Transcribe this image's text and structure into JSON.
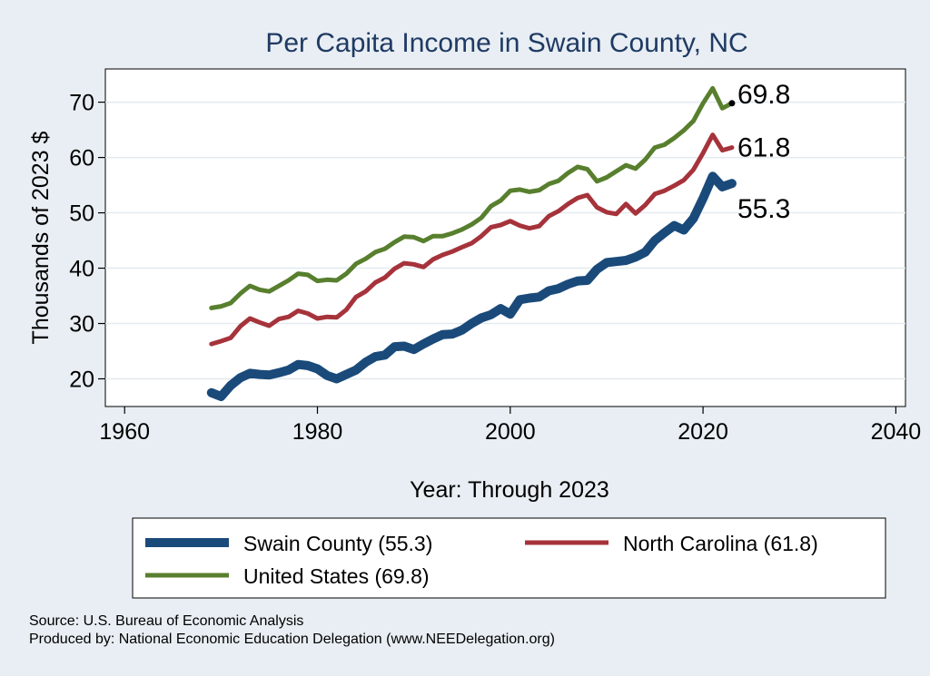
{
  "chart_data": {
    "type": "line",
    "title": "Per Capita Income in Swain County, NC",
    "xlabel": "Year: Through 2023",
    "ylabel": "Thousands of 2023 $",
    "xlim": [
      1958,
      2041
    ],
    "ylim": [
      15,
      76
    ],
    "xticks": [
      1960,
      1980,
      2000,
      2020,
      2040
    ],
    "yticks": [
      20,
      30,
      40,
      50,
      60,
      70
    ],
    "x": [
      1969,
      1970,
      1971,
      1972,
      1973,
      1974,
      1975,
      1976,
      1977,
      1978,
      1979,
      1980,
      1981,
      1982,
      1983,
      1984,
      1985,
      1986,
      1987,
      1988,
      1989,
      1990,
      1991,
      1992,
      1993,
      1994,
      1995,
      1996,
      1997,
      1998,
      1999,
      2000,
      2001,
      2002,
      2003,
      2004,
      2005,
      2006,
      2007,
      2008,
      2009,
      2010,
      2011,
      2012,
      2013,
      2014,
      2015,
      2016,
      2017,
      2018,
      2019,
      2020,
      2021,
      2022,
      2023
    ],
    "series": [
      {
        "name": "Swain County",
        "legend": "Swain County (55.3)",
        "end_label": "55.3",
        "color": "#1a4a7a",
        "values": [
          17.5,
          16.8,
          18.8,
          20.2,
          21.0,
          20.8,
          20.7,
          21.1,
          21.6,
          22.6,
          22.4,
          21.8,
          20.6,
          20.0,
          20.8,
          21.6,
          23.0,
          24.0,
          24.3,
          25.8,
          25.9,
          25.3,
          26.3,
          27.2,
          28.0,
          28.1,
          28.8,
          30.0,
          31.0,
          31.6,
          32.7,
          31.7,
          34.3,
          34.6,
          34.8,
          35.9,
          36.3,
          37.1,
          37.7,
          37.8,
          39.8,
          41.0,
          41.2,
          41.4,
          42.0,
          42.9,
          45.0,
          46.4,
          47.7,
          46.9,
          49.0,
          52.6,
          56.6,
          54.7,
          55.3
        ]
      },
      {
        "name": "North Carolina",
        "legend": "North Carolina (61.8)",
        "end_label": "61.8",
        "color": "#a6333b",
        "values": [
          26.3,
          26.8,
          27.4,
          29.5,
          30.9,
          30.2,
          29.6,
          30.8,
          31.2,
          32.3,
          31.8,
          30.9,
          31.2,
          31.1,
          32.5,
          34.8,
          35.8,
          37.4,
          38.3,
          39.9,
          40.9,
          40.7,
          40.2,
          41.6,
          42.4,
          43.0,
          43.8,
          44.5,
          45.8,
          47.4,
          47.8,
          48.5,
          47.7,
          47.2,
          47.6,
          49.4,
          50.3,
          51.6,
          52.7,
          53.2,
          51.0,
          50.1,
          49.8,
          51.6,
          49.9,
          51.4,
          53.4,
          54.0,
          54.9,
          55.9,
          57.8,
          60.8,
          64.1,
          61.3,
          61.8
        ]
      },
      {
        "name": "United States",
        "legend": "United States (69.8)",
        "end_label": "69.8",
        "color": "#587f2e",
        "values": [
          32.8,
          33.1,
          33.7,
          35.4,
          36.8,
          36.1,
          35.8,
          36.8,
          37.8,
          39.0,
          38.8,
          37.7,
          37.9,
          37.8,
          39.0,
          40.8,
          41.7,
          42.9,
          43.5,
          44.7,
          45.7,
          45.6,
          44.9,
          45.8,
          45.8,
          46.3,
          47.0,
          47.9,
          49.1,
          51.2,
          52.2,
          54.0,
          54.2,
          53.8,
          54.1,
          55.2,
          55.8,
          57.2,
          58.3,
          57.9,
          55.7,
          56.4,
          57.5,
          58.6,
          58.0,
          59.6,
          61.8,
          62.3,
          63.5,
          64.9,
          66.6,
          69.8,
          72.5,
          68.9,
          69.8
        ]
      }
    ],
    "legend_position": "bottom"
  },
  "source": "Source: U.S. Bureau of Economic Analysis",
  "produced_by": "Produced by: National Economic Education Delegation (www.NEEDelegation.org)"
}
